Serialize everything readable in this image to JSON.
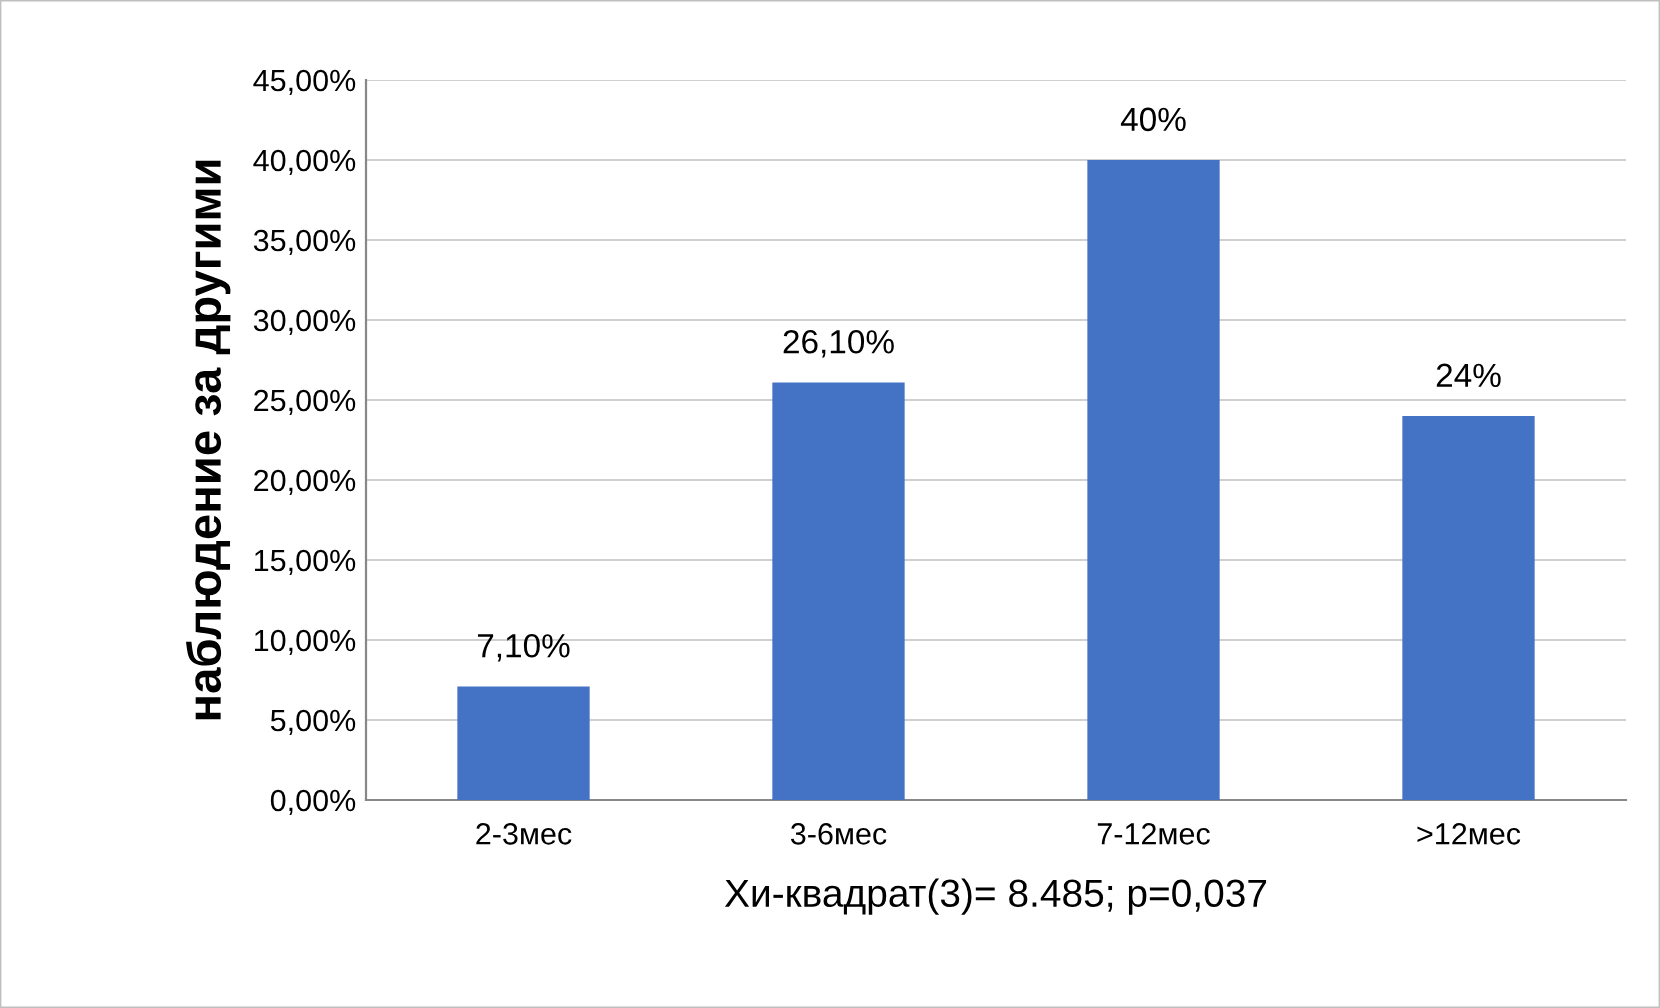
{
  "chart_data": {
    "type": "bar",
    "xlabel": "Хи-квадрат(3)= 8.485; p=0,037",
    "ylabel": "наблюдение за другими",
    "categories": [
      "2-3мес",
      "3-6мес",
      "7-12мес",
      ">12мес"
    ],
    "values": [
      7.1,
      26.1,
      40,
      24
    ],
    "color": "#4472c4",
    "value_labels": [
      "7,10%",
      "26,10%",
      "40%",
      "24%"
    ],
    "ylim": [
      0,
      45
    ],
    "yticks": [
      {
        "value": 0,
        "label": "0,00%"
      },
      {
        "value": 5,
        "label": "5,00%"
      },
      {
        "value": 10,
        "label": "10,00%"
      },
      {
        "value": 15,
        "label": "15,00%"
      },
      {
        "value": 20,
        "label": "20,00%"
      },
      {
        "value": 25,
        "label": "25,00%"
      },
      {
        "value": 30,
        "label": "30,00%"
      },
      {
        "value": 35,
        "label": "35,00%"
      },
      {
        "value": 40,
        "label": "40,00%"
      },
      {
        "value": 45,
        "label": "45,00%"
      }
    ],
    "grid": "y",
    "legend": false
  }
}
